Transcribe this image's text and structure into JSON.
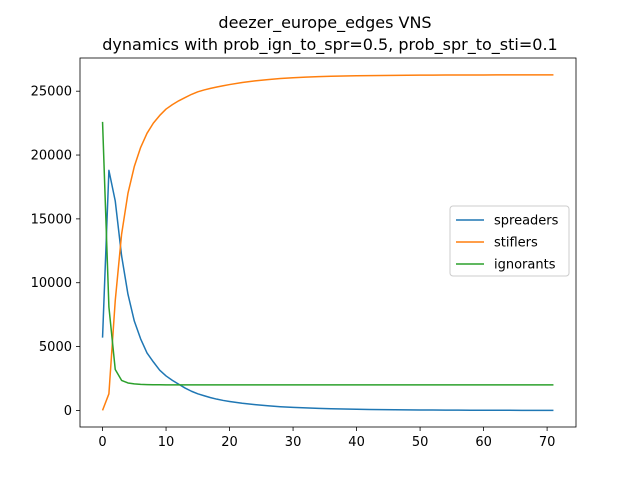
{
  "chart_data": {
    "type": "line",
    "title": "deezer_europe_edges VNS",
    "subtitle": "dynamics with prob_ign_to_spr=0.5, prob_spr_to_sti=0.1",
    "xlim": [
      -3.55,
      74.55
    ],
    "ylim": [
      -1300,
      27600
    ],
    "xticks": [
      0,
      10,
      20,
      30,
      40,
      50,
      60,
      70
    ],
    "yticks": [
      0,
      5000,
      10000,
      15000,
      20000,
      25000
    ],
    "grid": false,
    "legend_position": "center-right",
    "x": [
      0,
      1,
      2,
      3,
      4,
      5,
      6,
      7,
      8,
      9,
      10,
      11,
      12,
      13,
      14,
      15,
      16,
      17,
      18,
      19,
      20,
      22,
      24,
      26,
      28,
      30,
      32,
      34,
      36,
      38,
      40,
      42,
      44,
      46,
      48,
      50,
      52,
      54,
      56,
      58,
      60,
      62,
      64,
      66,
      68,
      70,
      71
    ],
    "series": [
      {
        "name": "spreaders",
        "color": "#1f77b4",
        "values": [
          5700,
          18800,
          16400,
          12100,
          9100,
          7000,
          5600,
          4500,
          3800,
          3150,
          2700,
          2350,
          2050,
          1750,
          1500,
          1300,
          1150,
          1000,
          880,
          780,
          700,
          560,
          450,
          360,
          290,
          240,
          200,
          160,
          130,
          110,
          90,
          75,
          60,
          50,
          40,
          35,
          30,
          25,
          20,
          16,
          13,
          10,
          8,
          6,
          4,
          2,
          0
        ]
      },
      {
        "name": "stiflers",
        "color": "#ff7f0e",
        "values": [
          0,
          1300,
          8600,
          13800,
          17000,
          19100,
          20600,
          21700,
          22500,
          23100,
          23600,
          23950,
          24250,
          24500,
          24750,
          24950,
          25100,
          25220,
          25330,
          25430,
          25520,
          25680,
          25810,
          25910,
          25990,
          26050,
          26100,
          26140,
          26170,
          26190,
          26210,
          26220,
          26230,
          26240,
          26250,
          26255,
          26260,
          26265,
          26268,
          26270,
          26272,
          26274,
          26276,
          26278,
          26279,
          26280,
          26280
        ]
      },
      {
        "name": "ignorants",
        "color": "#2ca02c",
        "values": [
          22600,
          8100,
          3200,
          2350,
          2150,
          2080,
          2040,
          2020,
          2010,
          2005,
          2000,
          2000,
          2000,
          2000,
          2000,
          2000,
          2000,
          2000,
          2000,
          2000,
          2000,
          2000,
          2000,
          2000,
          2000,
          2000,
          2000,
          2000,
          2000,
          2000,
          2000,
          2000,
          2000,
          2000,
          2000,
          2000,
          2000,
          2000,
          2000,
          2000,
          2000,
          2000,
          2000,
          2000,
          2000,
          2000,
          2000
        ]
      }
    ]
  }
}
